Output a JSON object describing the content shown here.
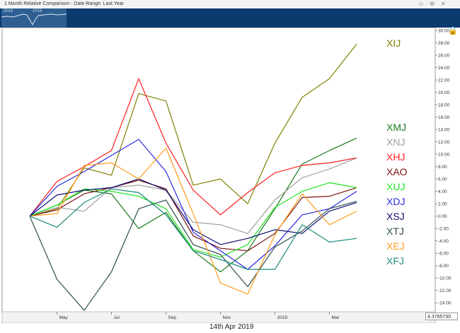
{
  "window": {
    "title": "1 Month Relative Comparison - Date Range: Last Year",
    "icons": [
      "diamond-icon",
      "settings-icon",
      "close-icon"
    ]
  },
  "navigator": {
    "labels": [
      "2018",
      "2019"
    ]
  },
  "readout": "4.3765730",
  "cursor_date": "14th Apr 2019",
  "chart_data": {
    "type": "line",
    "x": [
      "2018-04",
      "2018-05",
      "2018-06",
      "2018-07",
      "2018-08",
      "2018-09",
      "2018-10",
      "2018-11",
      "2018-12",
      "2019-01",
      "2019-02",
      "2019-03",
      "2019-04"
    ],
    "x_tick_labels": [
      "May",
      "Jul",
      "Sep",
      "Nov",
      "2019",
      "Mar"
    ],
    "x_tick_positions": [
      "2018-05",
      "2018-07",
      "2018-09",
      "2018-11",
      "2019-01",
      "2019-03"
    ],
    "ylim": [
      -15,
      30
    ],
    "y_ticks": [
      "30.00",
      "28.00",
      "26.00",
      "24.00",
      "22.00",
      "20.00",
      "18.00",
      "16.00",
      "14.00",
      "12.00",
      "10.00",
      "8.00",
      "6.00",
      "4.00",
      "2.00",
      "0.00",
      "-2.00",
      "-4.00",
      "-6.00",
      "-8.00",
      "-10.00",
      "-12.00",
      "-14.00"
    ],
    "grid": false,
    "legend": "right",
    "series": [
      {
        "name": "XIJ",
        "color": "#808000",
        "values": [
          0.0,
          1.2,
          7.8,
          6.6,
          19.8,
          18.6,
          5.0,
          6.0,
          2.0,
          11.8,
          19.2,
          22.2,
          27.8
        ]
      },
      {
        "name": "XMJ",
        "color": "#1a7a1a",
        "values": [
          0.0,
          1.8,
          4.2,
          3.6,
          -2.0,
          0.6,
          -5.6,
          -9.0,
          -5.6,
          1.2,
          8.4,
          10.6,
          12.6
        ]
      },
      {
        "name": "XNJ",
        "color": "#a0a0a0",
        "values": [
          0.0,
          1.4,
          0.8,
          4.6,
          5.0,
          4.2,
          -1.0,
          -1.4,
          -2.8,
          2.6,
          6.2,
          7.6,
          9.4
        ]
      },
      {
        "name": "XHJ",
        "color": "#ff2020",
        "values": [
          0.0,
          5.6,
          8.0,
          10.6,
          22.2,
          11.8,
          4.2,
          0.2,
          3.8,
          7.0,
          8.2,
          8.6,
          9.4
        ]
      },
      {
        "name": "XAO",
        "color": "#7a1010",
        "values": [
          0.0,
          1.0,
          3.6,
          4.6,
          5.8,
          4.4,
          -3.2,
          -5.2,
          -5.6,
          -2.8,
          3.0,
          3.2,
          4.6
        ]
      },
      {
        "name": "XUJ",
        "color": "#22e622",
        "values": [
          0.0,
          1.8,
          4.4,
          4.0,
          3.2,
          1.2,
          -5.4,
          -6.6,
          -4.6,
          1.4,
          4.0,
          5.4,
          4.6
        ]
      },
      {
        "name": "XDJ",
        "color": "#2828e0",
        "values": [
          0.0,
          4.8,
          7.2,
          9.8,
          12.4,
          7.2,
          -2.6,
          -5.6,
          -8.6,
          -4.8,
          0.2,
          1.2,
          4.0
        ]
      },
      {
        "name": "XSJ",
        "color": "#0a0a70",
        "values": [
          0.0,
          3.4,
          4.2,
          4.6,
          6.0,
          4.2,
          -2.2,
          -4.6,
          -3.6,
          -2.2,
          -2.8,
          0.8,
          2.2
        ]
      },
      {
        "name": "XTJ",
        "color": "#2f4f4f",
        "values": [
          0.0,
          -10.2,
          -15.2,
          -9.0,
          1.2,
          2.6,
          -4.6,
          -6.2,
          -11.4,
          -5.0,
          -2.4,
          1.2,
          2.4
        ]
      },
      {
        "name": "XEJ",
        "color": "#ff9a1a",
        "values": [
          0.0,
          0.4,
          8.2,
          8.6,
          6.0,
          11.0,
          0.4,
          -10.8,
          -12.6,
          -3.0,
          3.6,
          -1.4,
          0.8
        ]
      },
      {
        "name": "XFJ",
        "color": "#1a8a7a",
        "values": [
          0.0,
          -1.8,
          2.2,
          4.4,
          3.8,
          0.2,
          -5.6,
          -7.0,
          -8.6,
          -8.6,
          -1.4,
          -4.2,
          -3.6
        ]
      }
    ]
  }
}
